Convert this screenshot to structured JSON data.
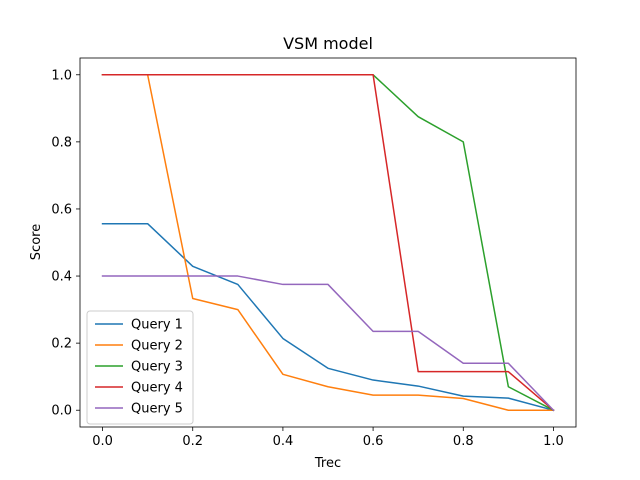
{
  "chart_data": {
    "type": "line",
    "title": "VSM model",
    "xlabel": "Trec",
    "ylabel": "Score",
    "xlim": [
      -0.05,
      1.05
    ],
    "ylim": [
      -0.05,
      1.05
    ],
    "xticks": [
      0.0,
      0.2,
      0.4,
      0.6,
      0.8,
      1.0
    ],
    "xtick_labels": [
      "0.0",
      "0.2",
      "0.4",
      "0.6",
      "0.8",
      "1.0"
    ],
    "yticks": [
      0.0,
      0.2,
      0.4,
      0.6,
      0.8,
      1.0
    ],
    "ytick_labels": [
      "0.0",
      "0.2",
      "0.4",
      "0.6",
      "0.8",
      "1.0"
    ],
    "grid": false,
    "legend_position": "lower-left",
    "x": [
      0.0,
      0.1,
      0.2,
      0.3,
      0.4,
      0.5,
      0.6,
      0.7,
      0.8,
      0.9,
      1.0
    ],
    "series": [
      {
        "name": "Query 1",
        "color": "#1f77b4",
        "values": [
          0.556,
          0.556,
          0.429,
          0.375,
          0.214,
          0.125,
          0.09,
          0.072,
          0.042,
          0.036,
          0.0
        ]
      },
      {
        "name": "Query 2",
        "color": "#ff7f0e",
        "values": [
          1.0,
          1.0,
          0.333,
          0.3,
          0.107,
          0.07,
          0.045,
          0.045,
          0.035,
          0.0,
          0.0
        ]
      },
      {
        "name": "Query 3",
        "color": "#2ca02c",
        "values": [
          1.0,
          1.0,
          1.0,
          1.0,
          1.0,
          1.0,
          1.0,
          0.875,
          0.8,
          0.07,
          0.0
        ]
      },
      {
        "name": "Query 4",
        "color": "#d62728",
        "values": [
          1.0,
          1.0,
          1.0,
          1.0,
          1.0,
          1.0,
          1.0,
          0.115,
          0.115,
          0.115,
          0.0
        ]
      },
      {
        "name": "Query 5",
        "color": "#9467bd",
        "values": [
          0.4,
          0.4,
          0.4,
          0.4,
          0.375,
          0.375,
          0.235,
          0.235,
          0.14,
          0.14,
          0.0
        ]
      }
    ]
  }
}
